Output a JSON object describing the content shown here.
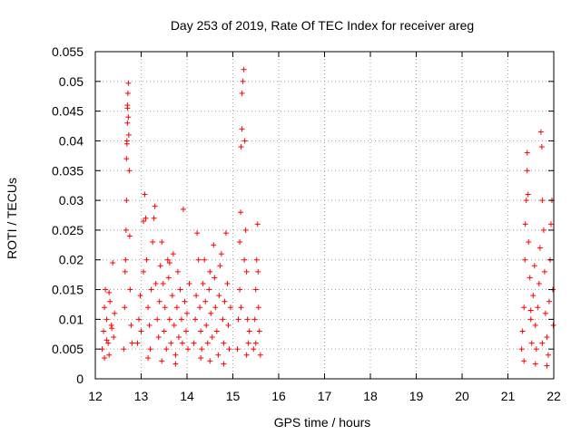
{
  "chart_data": {
    "type": "scatter",
    "title": "Day 253 of 2019, Rate Of TEC Index for receiver areg",
    "xlabel": "GPS time / hours",
    "ylabel": "ROTI / TECUs",
    "xlim": [
      12,
      22
    ],
    "ylim": [
      0,
      0.055
    ],
    "x_ticks": [
      12,
      13,
      14,
      15,
      16,
      17,
      18,
      19,
      20,
      21,
      22
    ],
    "y_ticks": [
      0,
      0.005,
      0.01,
      0.015,
      0.02,
      0.025,
      0.03,
      0.035,
      0.04,
      0.045,
      0.05,
      0.055
    ],
    "x_tick_labels": [
      "12",
      "13",
      "14",
      "15",
      "16",
      "17",
      "18",
      "19",
      "20",
      "21",
      "22"
    ],
    "y_tick_labels": [
      "0",
      "0.005",
      "0.01",
      "0.015",
      "0.02",
      "0.025",
      "0.03",
      "0.035",
      "0.04",
      "0.045",
      "0.05",
      "0.055"
    ],
    "grid": true,
    "marker": "+",
    "marker_color": "#ff0000",
    "series": [
      {
        "name": "ROTI",
        "points": [
          [
            12.15,
            0.005
          ],
          [
            12.18,
            0.008
          ],
          [
            12.2,
            0.012
          ],
          [
            12.22,
            0.015
          ],
          [
            12.25,
            0.01
          ],
          [
            12.28,
            0.006
          ],
          [
            12.3,
            0.004
          ],
          [
            12.32,
            0.013
          ],
          [
            12.35,
            0.009
          ],
          [
            12.38,
            0.0195
          ],
          [
            12.4,
            0.007
          ],
          [
            12.42,
            0.011
          ],
          [
            12.2,
            0.0035
          ],
          [
            12.3,
            0.0145
          ],
          [
            12.25,
            0.0065
          ],
          [
            12.36,
            0.0085
          ],
          [
            12.62,
            0.005
          ],
          [
            12.64,
            0.012
          ],
          [
            12.65,
            0.018
          ],
          [
            12.66,
            0.02
          ],
          [
            12.67,
            0.025
          ],
          [
            12.68,
            0.03
          ],
          [
            12.68,
            0.037
          ],
          [
            12.69,
            0.04
          ],
          [
            12.7,
            0.043
          ],
          [
            12.7,
            0.046
          ],
          [
            12.71,
            0.048
          ],
          [
            12.72,
            0.0497
          ],
          [
            12.72,
            0.044
          ],
          [
            12.73,
            0.041
          ],
          [
            12.74,
            0.035
          ],
          [
            12.75,
            0.024
          ],
          [
            12.76,
            0.015
          ],
          [
            12.78,
            0.009
          ],
          [
            12.8,
            0.006
          ],
          [
            12.7,
            0.0455
          ],
          [
            12.69,
            0.0395
          ],
          [
            12.92,
            0.006
          ],
          [
            12.95,
            0.01
          ],
          [
            12.98,
            0.014
          ],
          [
            13.0,
            0.008
          ],
          [
            13.05,
            0.018
          ],
          [
            13.08,
            0.031
          ],
          [
            13.1,
            0.027
          ],
          [
            13.12,
            0.02
          ],
          [
            13.15,
            0.012
          ],
          [
            13.18,
            0.009
          ],
          [
            13.2,
            0.005
          ],
          [
            13.22,
            0.015
          ],
          [
            13.25,
            0.023
          ],
          [
            13.28,
            0.027
          ],
          [
            13.3,
            0.029
          ],
          [
            13.32,
            0.016
          ],
          [
            13.35,
            0.01
          ],
          [
            13.38,
            0.007
          ],
          [
            13.4,
            0.013
          ],
          [
            13.42,
            0.019
          ],
          [
            13.45,
            0.023
          ],
          [
            13.48,
            0.016
          ],
          [
            13.5,
            0.008
          ],
          [
            13.52,
            0.012
          ],
          [
            13.55,
            0.005
          ],
          [
            13.58,
            0.02
          ],
          [
            13.6,
            0.017
          ],
          [
            13.62,
            0.01
          ],
          [
            13.65,
            0.006
          ],
          [
            13.68,
            0.014
          ],
          [
            13.7,
            0.021
          ],
          [
            13.72,
            0.009
          ],
          [
            13.75,
            0.004
          ],
          [
            13.78,
            0.012
          ],
          [
            13.8,
            0.018
          ],
          [
            13.82,
            0.007
          ],
          [
            13.85,
            0.015
          ],
          [
            13.88,
            0.01
          ],
          [
            13.9,
            0.006
          ],
          [
            13.92,
            0.0285
          ],
          [
            13.95,
            0.013
          ],
          [
            13.98,
            0.008
          ],
          [
            14.0,
            0.011
          ],
          [
            14.02,
            0.005
          ],
          [
            14.05,
            0.016
          ],
          [
            13.15,
            0.0035
          ],
          [
            13.45,
            0.003
          ],
          [
            13.75,
            0.0025
          ],
          [
            13.05,
            0.0265
          ],
          [
            13.62,
            0.0195
          ],
          [
            14.15,
            0.006
          ],
          [
            14.18,
            0.01
          ],
          [
            14.2,
            0.014
          ],
          [
            14.22,
            0.0245
          ],
          [
            14.25,
            0.02
          ],
          [
            14.28,
            0.012
          ],
          [
            14.3,
            0.008
          ],
          [
            14.32,
            0.005
          ],
          [
            14.35,
            0.016
          ],
          [
            14.38,
            0.02
          ],
          [
            14.4,
            0.013
          ],
          [
            14.42,
            0.009
          ],
          [
            14.45,
            0.006
          ],
          [
            14.48,
            0.015
          ],
          [
            14.5,
            0.018
          ],
          [
            14.52,
            0.011
          ],
          [
            14.55,
            0.007
          ],
          [
            14.58,
            0.0225
          ],
          [
            14.6,
            0.017
          ],
          [
            14.62,
            0.012
          ],
          [
            14.65,
            0.008
          ],
          [
            14.68,
            0.004
          ],
          [
            14.7,
            0.014
          ],
          [
            14.72,
            0.019
          ],
          [
            14.75,
            0.021
          ],
          [
            14.78,
            0.01
          ],
          [
            14.8,
            0.006
          ],
          [
            14.82,
            0.013
          ],
          [
            14.85,
            0.0245
          ],
          [
            14.88,
            0.016
          ],
          [
            14.9,
            0.009
          ],
          [
            14.92,
            0.005
          ],
          [
            14.95,
            0.012
          ],
          [
            14.5,
            0.003
          ],
          [
            14.8,
            0.0025
          ],
          [
            14.3,
            0.0035
          ],
          [
            15.1,
            0.005
          ],
          [
            15.12,
            0.01
          ],
          [
            15.15,
            0.015
          ],
          [
            15.17,
            0.028
          ],
          [
            15.18,
            0.039
          ],
          [
            15.2,
            0.042
          ],
          [
            15.2,
            0.048
          ],
          [
            15.22,
            0.05
          ],
          [
            15.24,
            0.052
          ],
          [
            15.26,
            0.04
          ],
          [
            15.28,
            0.025
          ],
          [
            15.3,
            0.018
          ],
          [
            15.32,
            0.01
          ],
          [
            15.34,
            0.006
          ],
          [
            15.36,
            0.008
          ],
          [
            15.15,
            0.023
          ],
          [
            15.25,
            0.02
          ],
          [
            15.18,
            0.012
          ],
          [
            15.3,
            0.004
          ],
          [
            15.45,
            0.005
          ],
          [
            15.48,
            0.01
          ],
          [
            15.5,
            0.015
          ],
          [
            15.52,
            0.02
          ],
          [
            15.54,
            0.026
          ],
          [
            15.55,
            0.018
          ],
          [
            15.56,
            0.012
          ],
          [
            15.58,
            0.008
          ],
          [
            15.6,
            0.004
          ],
          [
            15.5,
            0.006
          ],
          [
            21.3,
            0.005
          ],
          [
            21.32,
            0.008
          ],
          [
            21.35,
            0.012
          ],
          [
            21.37,
            0.02
          ],
          [
            21.38,
            0.026
          ],
          [
            21.4,
            0.03
          ],
          [
            21.42,
            0.035
          ],
          [
            21.42,
            0.038
          ],
          [
            21.44,
            0.031
          ],
          [
            21.45,
            0.023
          ],
          [
            21.48,
            0.017
          ],
          [
            21.5,
            0.01
          ],
          [
            21.52,
            0.006
          ],
          [
            21.55,
            0.014
          ],
          [
            21.58,
            0.019
          ],
          [
            21.6,
            0.009
          ],
          [
            21.62,
            0.005
          ],
          [
            21.65,
            0.012
          ],
          [
            21.68,
            0.016
          ],
          [
            21.7,
            0.022
          ],
          [
            21.72,
            0.0415
          ],
          [
            21.74,
            0.039
          ],
          [
            21.75,
            0.03
          ],
          [
            21.78,
            0.025
          ],
          [
            21.8,
            0.018
          ],
          [
            21.82,
            0.011
          ],
          [
            21.85,
            0.007
          ],
          [
            21.88,
            0.004
          ],
          [
            21.9,
            0.013
          ],
          [
            21.92,
            0.02
          ],
          [
            21.94,
            0.026
          ],
          [
            21.96,
            0.03
          ],
          [
            21.98,
            0.015
          ],
          [
            21.99,
            0.009
          ],
          [
            21.35,
            0.003
          ],
          [
            21.6,
            0.0025
          ],
          [
            21.85,
            0.0022
          ],
          [
            21.5,
            0.0115
          ],
          [
            21.75,
            0.006
          ]
        ]
      }
    ]
  }
}
